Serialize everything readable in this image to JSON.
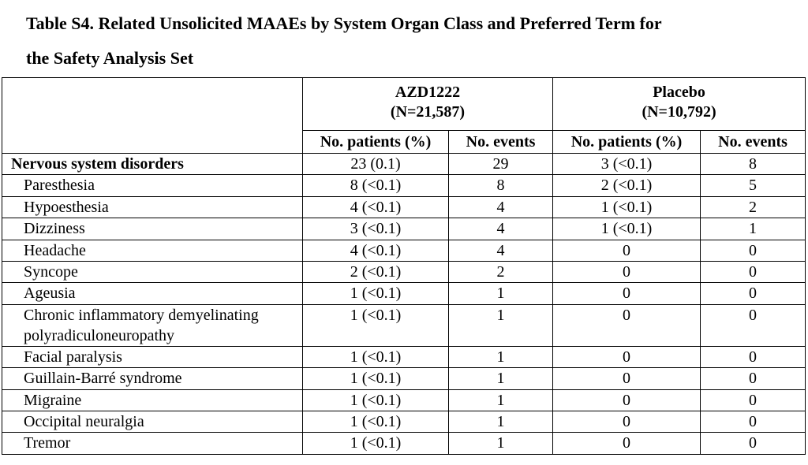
{
  "title": {
    "line1": "Table S4. Related Unsolicited MAAEs by System Organ Class and Preferred Term for",
    "line2": "the Safety Analysis Set"
  },
  "groups": [
    {
      "name": "AZD1222",
      "n": "(N=21,587)"
    },
    {
      "name": "Placebo",
      "n": "(N=10,792)"
    }
  ],
  "columns": {
    "patients": "No. patients (%)",
    "events": "No. events"
  },
  "rows": [
    {
      "term": "Nervous system disorders",
      "soc": true,
      "azd_patients": "23 (0.1)",
      "azd_events": "29",
      "pbo_patients": "3 (<0.1)",
      "pbo_events": "8"
    },
    {
      "term": "Paresthesia",
      "azd_patients": "8 (<0.1)",
      "azd_events": "8",
      "pbo_patients": "2 (<0.1)",
      "pbo_events": "5"
    },
    {
      "term": "Hypoesthesia",
      "azd_patients": "4 (<0.1)",
      "azd_events": "4",
      "pbo_patients": "1 (<0.1)",
      "pbo_events": "2"
    },
    {
      "term": "Dizziness",
      "azd_patients": "3 (<0.1)",
      "azd_events": "4",
      "pbo_patients": "1 (<0.1)",
      "pbo_events": "1"
    },
    {
      "term": "Headache",
      "azd_patients": "4 (<0.1)",
      "azd_events": "4",
      "pbo_patients": "0",
      "pbo_events": "0"
    },
    {
      "term": "Syncope",
      "azd_patients": "2 (<0.1)",
      "azd_events": "2",
      "pbo_patients": "0",
      "pbo_events": "0"
    },
    {
      "term": "Ageusia",
      "azd_patients": "1 (<0.1)",
      "azd_events": "1",
      "pbo_patients": "0",
      "pbo_events": "0"
    },
    {
      "term": "Chronic inflammatory demyelinating",
      "term2": "polyradiculoneuropathy",
      "azd_patients": "1 (<0.1)",
      "azd_events": "1",
      "pbo_patients": "0",
      "pbo_events": "0"
    },
    {
      "term": "Facial paralysis",
      "azd_patients": "1 (<0.1)",
      "azd_events": "1",
      "pbo_patients": "0",
      "pbo_events": "0"
    },
    {
      "term": "Guillain-Barré syndrome",
      "azd_patients": "1 (<0.1)",
      "azd_events": "1",
      "pbo_patients": "0",
      "pbo_events": "0"
    },
    {
      "term": "Migraine",
      "azd_patients": "1 (<0.1)",
      "azd_events": "1",
      "pbo_patients": "0",
      "pbo_events": "0"
    },
    {
      "term": "Occipital neuralgia",
      "azd_patients": "1 (<0.1)",
      "azd_events": "1",
      "pbo_patients": "0",
      "pbo_events": "0"
    },
    {
      "term": "Tremor",
      "azd_patients": "1 (<0.1)",
      "azd_events": "1",
      "pbo_patients": "0",
      "pbo_events": "0"
    }
  ]
}
